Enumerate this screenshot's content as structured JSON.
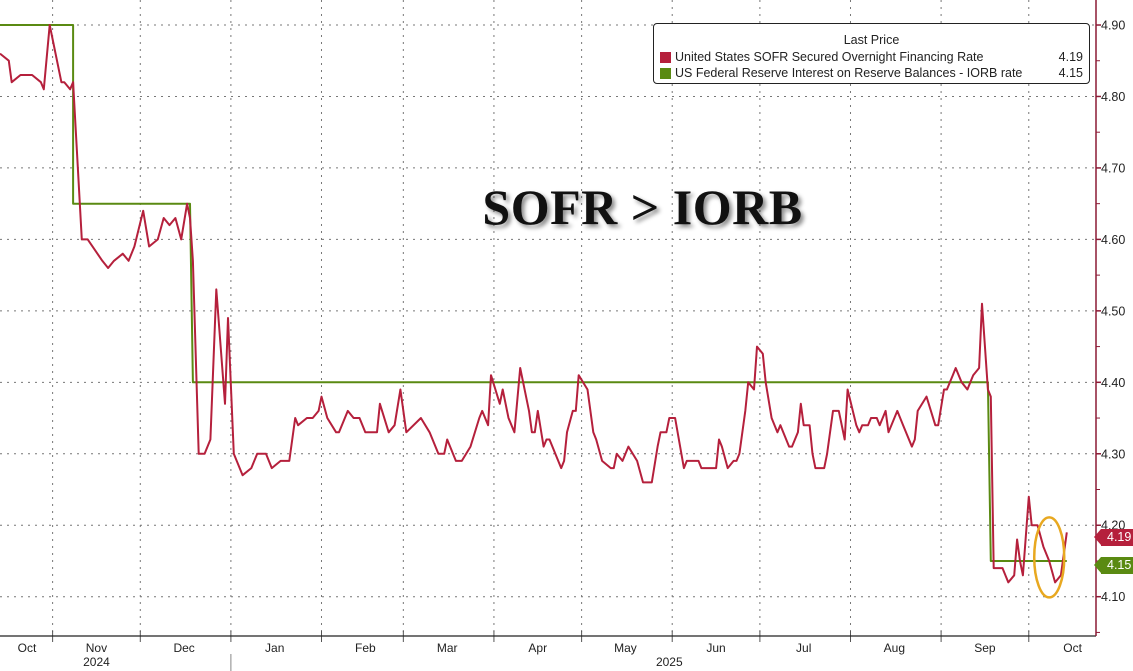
{
  "chart_data": {
    "type": "line",
    "title": "",
    "annotation": "SOFR > IORB",
    "legend": {
      "title": "Last Price",
      "placement": "top-right",
      "entries": [
        {
          "name": "United States SOFR Secured Overnight Financing Rate",
          "last": "4.19",
          "color": "#b5203c"
        },
        {
          "name": "US Federal Reserve Interest on Reserve Balances - IORB rate",
          "last": "4.15",
          "color": "#5a8a12"
        }
      ]
    },
    "x_range": [
      "2024-10-14",
      "2025-10-24"
    ],
    "y_range": [
      4.045,
      4.935
    ],
    "y_axis_side": "right",
    "y_ticks": [
      "4.10",
      "4.20",
      "4.30",
      "4.40",
      "4.50",
      "4.60",
      "4.70",
      "4.80",
      "4.90"
    ],
    "x_month_labels": [
      {
        "label": "Oct",
        "date": "2024-10-01"
      },
      {
        "label": "Nov",
        "date": "2024-11-01"
      },
      {
        "label": "Dec",
        "date": "2024-12-01"
      },
      {
        "label": "Jan",
        "date": "2025-01-01"
      },
      {
        "label": "Feb",
        "date": "2025-02-01"
      },
      {
        "label": "Mar",
        "date": "2025-03-01"
      },
      {
        "label": "Apr",
        "date": "2025-04-01"
      },
      {
        "label": "May",
        "date": "2025-05-01"
      },
      {
        "label": "Jun",
        "date": "2025-06-01"
      },
      {
        "label": "Jul",
        "date": "2025-07-01"
      },
      {
        "label": "Aug",
        "date": "2025-08-01"
      },
      {
        "label": "Sep",
        "date": "2025-09-01"
      },
      {
        "label": "Oct",
        "date": "2025-10-01"
      }
    ],
    "x_year_labels": [
      {
        "label": "2024",
        "date": "2024-11-16"
      },
      {
        "label": "2025",
        "date": "2025-05-31"
      }
    ],
    "grid": true,
    "highlight_ellipse_color": "#e8a820",
    "series": [
      {
        "name": "United States SOFR Secured Overnight Financing Rate",
        "color": "#b5203c",
        "points": [
          [
            "2024-10-14",
            4.86
          ],
          [
            "2024-10-17",
            4.85
          ],
          [
            "2024-10-18",
            4.82
          ],
          [
            "2024-10-21",
            4.83
          ],
          [
            "2024-10-25",
            4.83
          ],
          [
            "2024-10-28",
            4.82
          ],
          [
            "2024-10-29",
            4.81
          ],
          [
            "2024-10-31",
            4.9
          ],
          [
            "2024-11-04",
            4.82
          ],
          [
            "2024-11-05",
            4.82
          ],
          [
            "2024-11-07",
            4.81
          ],
          [
            "2024-11-08",
            4.82
          ],
          [
            "2024-11-11",
            4.6
          ],
          [
            "2024-11-13",
            4.6
          ],
          [
            "2024-11-18",
            4.57
          ],
          [
            "2024-11-20",
            4.56
          ],
          [
            "2024-11-22",
            4.57
          ],
          [
            "2024-11-25",
            4.58
          ],
          [
            "2024-11-27",
            4.57
          ],
          [
            "2024-11-29",
            4.59
          ],
          [
            "2024-12-02",
            4.64
          ],
          [
            "2024-12-04",
            4.59
          ],
          [
            "2024-12-07",
            4.6
          ],
          [
            "2024-12-09",
            4.63
          ],
          [
            "2024-12-11",
            4.62
          ],
          [
            "2024-12-13",
            4.63
          ],
          [
            "2024-12-15",
            4.6
          ],
          [
            "2024-12-17",
            4.65
          ],
          [
            "2024-12-18",
            4.63
          ],
          [
            "2024-12-19",
            4.57
          ],
          [
            "2024-12-21",
            4.3
          ],
          [
            "2024-12-23",
            4.3
          ],
          [
            "2024-12-25",
            4.32
          ],
          [
            "2024-12-27",
            4.53
          ],
          [
            "2024-12-30",
            4.37
          ],
          [
            "2024-12-31",
            4.49
          ],
          [
            "2025-01-02",
            4.3
          ],
          [
            "2025-01-05",
            4.27
          ],
          [
            "2025-01-08",
            4.28
          ],
          [
            "2025-01-10",
            4.3
          ],
          [
            "2025-01-13",
            4.3
          ],
          [
            "2025-01-15",
            4.28
          ],
          [
            "2025-01-18",
            4.29
          ],
          [
            "2025-01-21",
            4.29
          ],
          [
            "2025-01-23",
            4.35
          ],
          [
            "2025-01-24",
            4.34
          ],
          [
            "2025-01-27",
            4.35
          ],
          [
            "2025-01-29",
            4.35
          ],
          [
            "2025-01-31",
            4.36
          ],
          [
            "2025-02-01",
            4.38
          ],
          [
            "2025-02-03",
            4.35
          ],
          [
            "2025-02-06",
            4.33
          ],
          [
            "2025-02-07",
            4.33
          ],
          [
            "2025-02-10",
            4.36
          ],
          [
            "2025-02-12",
            4.35
          ],
          [
            "2025-02-14",
            4.35
          ],
          [
            "2025-02-16",
            4.33
          ],
          [
            "2025-02-18",
            4.33
          ],
          [
            "2025-02-20",
            4.33
          ],
          [
            "2025-02-21",
            4.37
          ],
          [
            "2025-02-24",
            4.33
          ],
          [
            "2025-02-26",
            4.34
          ],
          [
            "2025-02-28",
            4.39
          ],
          [
            "2025-03-02",
            4.33
          ],
          [
            "2025-03-07",
            4.35
          ],
          [
            "2025-03-10",
            4.33
          ],
          [
            "2025-03-13",
            4.3
          ],
          [
            "2025-03-15",
            4.3
          ],
          [
            "2025-03-16",
            4.32
          ],
          [
            "2025-03-19",
            4.29
          ],
          [
            "2025-03-21",
            4.29
          ],
          [
            "2025-03-24",
            4.31
          ],
          [
            "2025-03-27",
            4.35
          ],
          [
            "2025-03-28",
            4.36
          ],
          [
            "2025-03-30",
            4.34
          ],
          [
            "2025-03-31",
            4.41
          ],
          [
            "2025-04-03",
            4.37
          ],
          [
            "2025-04-04",
            4.39
          ],
          [
            "2025-04-06",
            4.35
          ],
          [
            "2025-04-08",
            4.33
          ],
          [
            "2025-04-10",
            4.42
          ],
          [
            "2025-04-13",
            4.36
          ],
          [
            "2025-04-14",
            4.33
          ],
          [
            "2025-04-15",
            4.33
          ],
          [
            "2025-04-16",
            4.36
          ],
          [
            "2025-04-18",
            4.31
          ],
          [
            "2025-04-19",
            4.32
          ],
          [
            "2025-04-20",
            4.32
          ],
          [
            "2025-04-24",
            4.28
          ],
          [
            "2025-04-25",
            4.29
          ],
          [
            "2025-04-26",
            4.33
          ],
          [
            "2025-04-28",
            4.36
          ],
          [
            "2025-04-29",
            4.36
          ],
          [
            "2025-04-30",
            4.41
          ],
          [
            "2025-05-03",
            4.39
          ],
          [
            "2025-05-05",
            4.33
          ],
          [
            "2025-05-06",
            4.32
          ],
          [
            "2025-05-08",
            4.29
          ],
          [
            "2025-05-11",
            4.28
          ],
          [
            "2025-05-12",
            4.28
          ],
          [
            "2025-05-13",
            4.3
          ],
          [
            "2025-05-15",
            4.29
          ],
          [
            "2025-05-17",
            4.31
          ],
          [
            "2025-05-20",
            4.29
          ],
          [
            "2025-05-22",
            4.26
          ],
          [
            "2025-05-25",
            4.26
          ],
          [
            "2025-05-27",
            4.31
          ],
          [
            "2025-05-28",
            4.33
          ],
          [
            "2025-05-30",
            4.33
          ],
          [
            "2025-05-31",
            4.35
          ],
          [
            "2025-06-02",
            4.35
          ],
          [
            "2025-06-05",
            4.28
          ],
          [
            "2025-06-06",
            4.29
          ],
          [
            "2025-06-08",
            4.29
          ],
          [
            "2025-06-10",
            4.29
          ],
          [
            "2025-06-11",
            4.28
          ],
          [
            "2025-06-16",
            4.28
          ],
          [
            "2025-06-17",
            4.32
          ],
          [
            "2025-06-18",
            4.31
          ],
          [
            "2025-06-20",
            4.28
          ],
          [
            "2025-06-22",
            4.29
          ],
          [
            "2025-06-23",
            4.29
          ],
          [
            "2025-06-24",
            4.3
          ],
          [
            "2025-06-26",
            4.36
          ],
          [
            "2025-06-27",
            4.4
          ],
          [
            "2025-06-29",
            4.39
          ],
          [
            "2025-06-30",
            4.45
          ],
          [
            "2025-07-02",
            4.44
          ],
          [
            "2025-07-03",
            4.4
          ],
          [
            "2025-07-05",
            4.35
          ],
          [
            "2025-07-07",
            4.33
          ],
          [
            "2025-07-08",
            4.34
          ],
          [
            "2025-07-10",
            4.32
          ],
          [
            "2025-07-11",
            4.31
          ],
          [
            "2025-07-12",
            4.31
          ],
          [
            "2025-07-14",
            4.33
          ],
          [
            "2025-07-15",
            4.37
          ],
          [
            "2025-07-16",
            4.34
          ],
          [
            "2025-07-18",
            4.34
          ],
          [
            "2025-07-19",
            4.3
          ],
          [
            "2025-07-20",
            4.28
          ],
          [
            "2025-07-23",
            4.28
          ],
          [
            "2025-07-24",
            4.3
          ],
          [
            "2025-07-26",
            4.36
          ],
          [
            "2025-07-28",
            4.36
          ],
          [
            "2025-07-30",
            4.32
          ],
          [
            "2025-07-31",
            4.39
          ],
          [
            "2025-08-03",
            4.34
          ],
          [
            "2025-08-04",
            4.33
          ],
          [
            "2025-08-05",
            4.34
          ],
          [
            "2025-08-07",
            4.34
          ],
          [
            "2025-08-08",
            4.35
          ],
          [
            "2025-08-10",
            4.35
          ],
          [
            "2025-08-11",
            4.34
          ],
          [
            "2025-08-13",
            4.36
          ],
          [
            "2025-08-14",
            4.33
          ],
          [
            "2025-08-17",
            4.36
          ],
          [
            "2025-08-19",
            4.34
          ],
          [
            "2025-08-22",
            4.31
          ],
          [
            "2025-08-23",
            4.32
          ],
          [
            "2025-08-24",
            4.36
          ],
          [
            "2025-08-27",
            4.38
          ],
          [
            "2025-08-30",
            4.34
          ],
          [
            "2025-08-31",
            4.34
          ],
          [
            "2025-09-02",
            4.39
          ],
          [
            "2025-09-03",
            4.39
          ],
          [
            "2025-09-05",
            4.41
          ],
          [
            "2025-09-06",
            4.42
          ],
          [
            "2025-09-08",
            4.4
          ],
          [
            "2025-09-10",
            4.39
          ],
          [
            "2025-09-12",
            4.41
          ],
          [
            "2025-09-14",
            4.42
          ],
          [
            "2025-09-15",
            4.51
          ],
          [
            "2025-09-17",
            4.39
          ],
          [
            "2025-09-18",
            4.38
          ],
          [
            "2025-09-19",
            4.14
          ],
          [
            "2025-09-22",
            4.14
          ],
          [
            "2025-09-24",
            4.12
          ],
          [
            "2025-09-26",
            4.13
          ],
          [
            "2025-09-27",
            4.18
          ],
          [
            "2025-09-28",
            4.15
          ],
          [
            "2025-09-29",
            4.13
          ],
          [
            "2025-10-01",
            4.24
          ],
          [
            "2025-10-02",
            4.2
          ],
          [
            "2025-10-04",
            4.2
          ],
          [
            "2025-10-06",
            4.17
          ],
          [
            "2025-10-08",
            4.15
          ],
          [
            "2025-10-10",
            4.12
          ],
          [
            "2025-10-12",
            4.13
          ],
          [
            "2025-10-14",
            4.19
          ]
        ]
      },
      {
        "name": "US Federal Reserve Interest on Reserve Balances - IORB rate",
        "color": "#5a8a12",
        "points": [
          [
            "2024-10-14",
            4.9
          ],
          [
            "2024-11-08",
            4.9
          ],
          [
            "2024-11-08",
            4.65
          ],
          [
            "2024-12-18",
            4.65
          ],
          [
            "2024-12-19",
            4.4
          ],
          [
            "2025-09-17",
            4.4
          ],
          [
            "2025-09-18",
            4.15
          ],
          [
            "2025-10-14",
            4.15
          ]
        ]
      }
    ]
  }
}
